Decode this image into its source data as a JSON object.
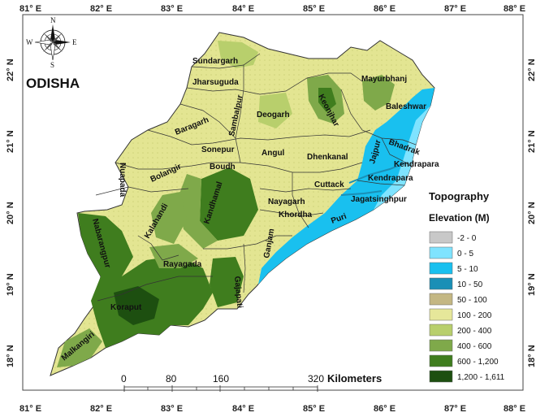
{
  "map": {
    "title": "ODISHA",
    "longitude_ticks": [
      "81° E",
      "82° E",
      "83° E",
      "84° E",
      "85° E",
      "86° E",
      "87° E",
      "88° E"
    ],
    "latitude_ticks": [
      "22° N",
      "21° N",
      "20° N",
      "19° N",
      "18° N"
    ],
    "compass": {
      "n": "N",
      "s": "S",
      "e": "E",
      "w": "W"
    },
    "districts": [
      "Sundargarh",
      "Jharsuguda",
      "Mayurbhanj",
      "Keonjhar",
      "Baleshwar",
      "Sambalpur",
      "Deogarh",
      "Baragarh",
      "Bhadrak",
      "Jajpur",
      "Kendrapara",
      "Sonepur",
      "Angul",
      "Dhenkanal",
      "Boudh",
      "Bolangir",
      "Nuapada",
      "Cuttack",
      "Kendrapara",
      "Nayagarh",
      "Jagatsinghpur",
      "Khordha",
      "Puri",
      "Kalahandi",
      "Kandhamal",
      "Nabarangpur",
      "Rayagada",
      "Ganjam",
      "Gajapati",
      "Koraput",
      "Malkangiri"
    ]
  },
  "legend": {
    "title": "Topography",
    "subtitle": "Elevation (M)",
    "classes": [
      {
        "label": "-2 - 0",
        "color": "#c8c8c8"
      },
      {
        "label": "0 - 5",
        "color": "#7fe3ff"
      },
      {
        "label": "5 - 10",
        "color": "#19c0ef"
      },
      {
        "label": "10 - 50",
        "color": "#1a8fb6"
      },
      {
        "label": "50 - 100",
        "color": "#c4b783"
      },
      {
        "label": "100 - 200",
        "color": "#e6e79a"
      },
      {
        "label": "200 - 400",
        "color": "#b8cf6c"
      },
      {
        "label": "400 - 600",
        "color": "#7fa94a"
      },
      {
        "label": "600 - 1,200",
        "color": "#3f7d1e"
      },
      {
        "label": "1,200 - 1,611",
        "color": "#1d4f10"
      }
    ]
  },
  "scale_bar": {
    "labels": [
      "0",
      "80",
      "160",
      "320"
    ],
    "unit": "Kilometers"
  }
}
